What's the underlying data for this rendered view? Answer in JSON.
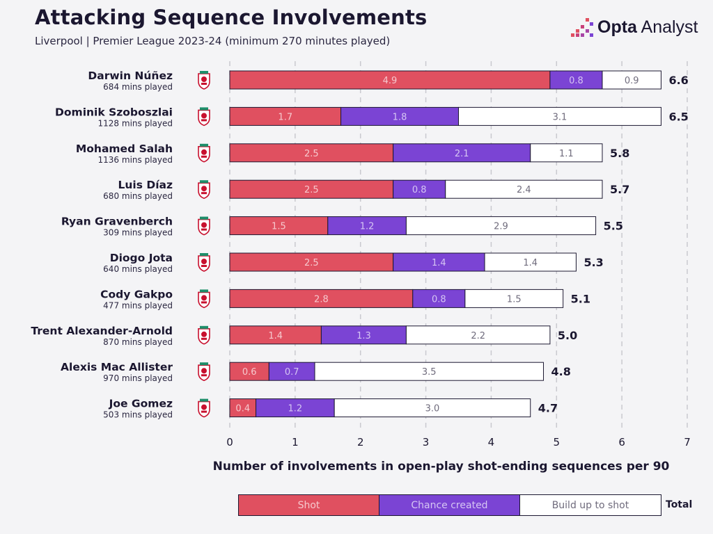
{
  "title": "Attacking Sequence Involvements",
  "subtitle": "Liverpool | Premier League 2023-24 (minimum 270 minutes played)",
  "brand": {
    "name_bold": "Opta",
    "name_rest": " Analyst",
    "icon": "opta-analyst-logo-icon"
  },
  "club_icon": "liverpool-crest-icon",
  "colors": {
    "shot": "#e05060",
    "chance": "#7b44d4",
    "build": "#ffffff",
    "ink": "#1b1730"
  },
  "legend": {
    "shot": "Shot",
    "chance": "Chance created",
    "build": "Build up to shot",
    "total": "Total"
  },
  "chart_data": {
    "type": "bar",
    "orientation": "horizontal",
    "stacked": true,
    "xlabel": "Number of involvements in open-play shot-ending sequences per 90",
    "xlim": [
      0,
      7
    ],
    "xticks": [
      0,
      1,
      2,
      3,
      4,
      5,
      6,
      7
    ],
    "grid": "vertical-dashed",
    "legend_position": "bottom",
    "categories": [
      "Darwin Núñez",
      "Dominik Szoboszlai",
      "Mohamed Salah",
      "Luis Díaz",
      "Ryan Gravenberch",
      "Diogo Jota",
      "Cody Gakpo",
      "Trent Alexander-Arnold",
      "Alexis Mac Allister",
      "Joe Gomez"
    ],
    "subtitles": [
      "684 mins played",
      "1128 mins played",
      "1136 mins played",
      "680 mins played",
      "309 mins played",
      "640 mins played",
      "477 mins played",
      "870 mins played",
      "970 mins played",
      "503 mins played"
    ],
    "series": [
      {
        "name": "Shot",
        "values": [
          4.9,
          1.7,
          2.5,
          2.5,
          1.5,
          2.5,
          2.8,
          1.4,
          0.6,
          0.4
        ]
      },
      {
        "name": "Chance created",
        "values": [
          0.8,
          1.8,
          2.1,
          0.8,
          1.2,
          1.4,
          0.8,
          1.3,
          0.7,
          1.2
        ]
      },
      {
        "name": "Build up to shot",
        "values": [
          0.9,
          3.1,
          1.1,
          2.4,
          2.9,
          1.4,
          1.5,
          2.2,
          3.5,
          3.0
        ]
      }
    ],
    "totals": [
      6.6,
      6.5,
      5.8,
      5.7,
      5.5,
      5.3,
      5.1,
      5.0,
      4.8,
      4.7
    ]
  }
}
